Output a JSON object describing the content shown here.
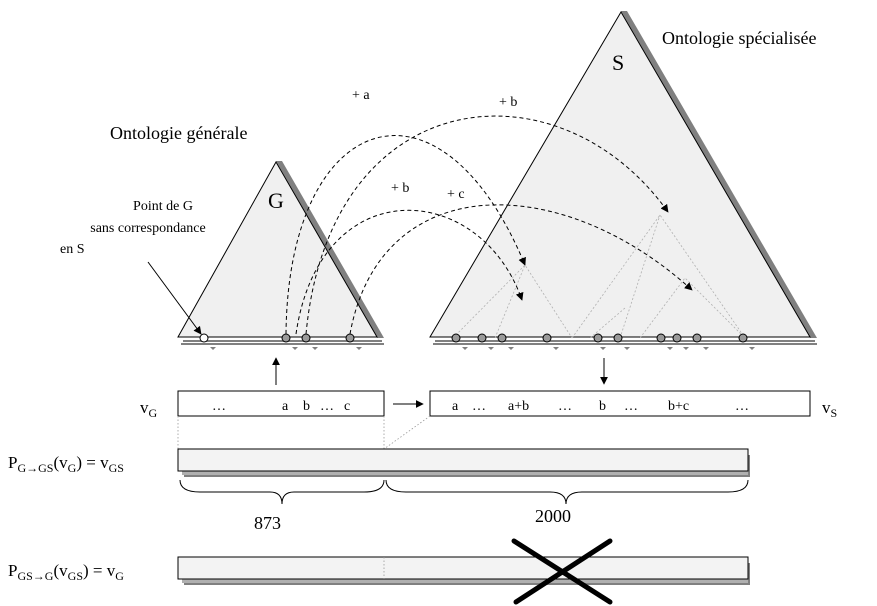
{
  "labels": {
    "specialized_ontology": "Ontologie spécialisée",
    "general_ontology": "Ontologie générale",
    "triangle_s": "S",
    "triangle_g": "G",
    "note_line1": "Point de G",
    "note_line2": "sans correspondance",
    "note_line3": "en S"
  },
  "arcs": {
    "plus_a": "+ a",
    "plus_b_top": "+ b",
    "plus_b_mid": "+ b",
    "plus_c": "+ c"
  },
  "vector_g": {
    "name": "v",
    "sub": "G",
    "dots": "…",
    "a": "a",
    "b": "b",
    "dots2": "…",
    "c": "c"
  },
  "vector_s": {
    "name": "v",
    "sub": "S",
    "a": "a",
    "dots1": "…",
    "ab": "a+b",
    "dots2": "…",
    "b": "b",
    "dots3": "…",
    "bc": "b+c",
    "dots4": "…"
  },
  "projection_gs": {
    "p": "P",
    "p_sub": "G→GS",
    "arg_open": "(v",
    "arg_sub": "G",
    "arg_close": ") = v",
    "result_sub": "GS"
  },
  "projection_g": {
    "p": "P",
    "p_sub": "GS→G",
    "arg_open": "(v",
    "arg_sub": "GS",
    "arg_close": ") = v",
    "result_sub": "G"
  },
  "brace_labels": {
    "left": "873",
    "right": "2000"
  }
}
